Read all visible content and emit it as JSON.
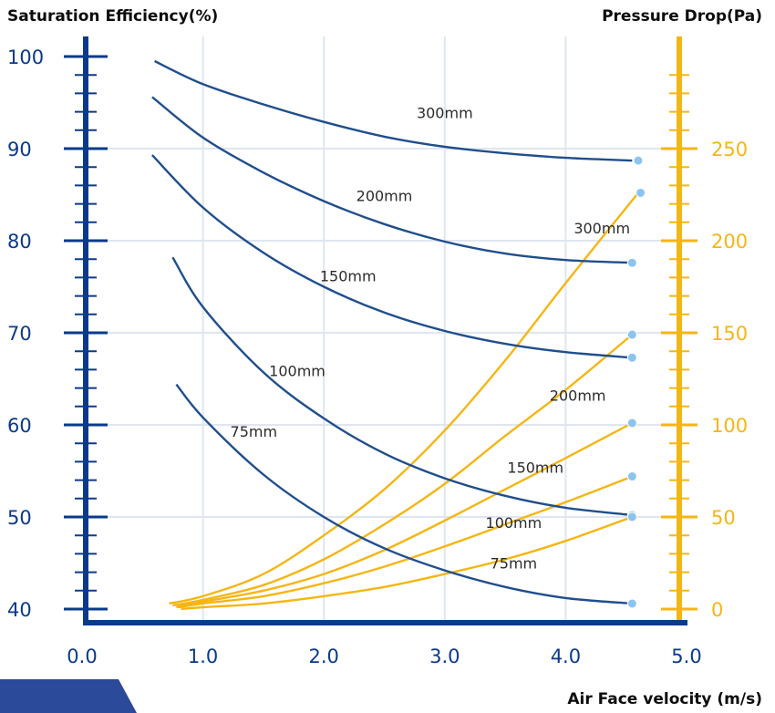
{
  "chart_data": {
    "type": "line",
    "left_axis_title": "Saturation Efficiency(%)",
    "right_axis_title": "Pressure Drop(Pa)",
    "xlabel": "Air Face velocity (m/s)",
    "xlim": [
      0,
      5
    ],
    "ylim_left": [
      40,
      100
    ],
    "ylim_right": [
      0,
      300
    ],
    "x_ticks": [
      "0.0",
      "1.0",
      "2.0",
      "3.0",
      "4.0",
      "5.0"
    ],
    "y_ticks_left": [
      "40",
      "50",
      "60",
      "70",
      "80",
      "90",
      "100"
    ],
    "y_ticks_right": [
      "0",
      "50",
      "100",
      "150",
      "200",
      "250"
    ],
    "grid": true,
    "colors": {
      "efficiency": "#1f4e8c",
      "pressure": "#f5b614",
      "left_axis": "#0a3a8a",
      "right_axis": "#f5b614",
      "marker": "#8cc4f0",
      "corner_band": "#2c4a9a"
    },
    "efficiency_series": [
      {
        "name": "300mm",
        "x": [
          0.6,
          1.0,
          1.5,
          2.0,
          2.5,
          3.0,
          3.5,
          4.0,
          4.55
        ],
        "values": [
          99.5,
          97.0,
          94.8,
          92.9,
          91.3,
          90.2,
          89.5,
          89.0,
          88.7
        ]
      },
      {
        "name": "200mm",
        "x": [
          0.58,
          1.0,
          1.5,
          2.0,
          2.5,
          3.0,
          3.5,
          4.0,
          4.55
        ],
        "values": [
          95.6,
          91.2,
          87.4,
          84.3,
          81.8,
          79.9,
          78.6,
          77.9,
          77.6
        ]
      },
      {
        "name": "150mm",
        "x": [
          0.58,
          1.0,
          1.5,
          2.0,
          2.5,
          3.0,
          3.5,
          4.0,
          4.55
        ],
        "values": [
          89.3,
          83.6,
          78.7,
          75.0,
          72.2,
          70.2,
          68.8,
          67.9,
          67.3
        ]
      },
      {
        "name": "100mm",
        "x": [
          0.75,
          1.0,
          1.5,
          2.0,
          2.5,
          3.0,
          3.5,
          4.0,
          4.55
        ],
        "values": [
          78.2,
          72.8,
          65.7,
          60.7,
          56.9,
          54.2,
          52.3,
          51.0,
          50.2
        ]
      },
      {
        "name": "75mm",
        "x": [
          0.78,
          1.0,
          1.5,
          2.0,
          2.5,
          3.0,
          3.5,
          4.0,
          4.55
        ],
        "values": [
          64.4,
          60.8,
          54.6,
          50.0,
          46.6,
          44.2,
          42.4,
          41.2,
          40.6
        ]
      }
    ],
    "pressure_series": [
      {
        "name": "300mm",
        "x": [
          0.72,
          1.0,
          1.5,
          2.0,
          2.5,
          3.0,
          3.5,
          4.0,
          4.6
        ],
        "values": [
          3,
          7,
          19,
          40,
          65,
          97,
          135,
          177,
          226
        ]
      },
      {
        "name": "200mm",
        "x": [
          0.75,
          1.0,
          1.5,
          2.0,
          2.5,
          3.0,
          3.5,
          4.0,
          4.55
        ],
        "values": [
          2,
          5,
          13,
          27,
          46,
          68,
          94,
          119,
          149
        ]
      },
      {
        "name": "150mm",
        "x": [
          0.78,
          1.0,
          1.5,
          2.0,
          2.5,
          3.0,
          3.5,
          4.0,
          4.55
        ],
        "values": [
          1,
          4,
          10,
          19,
          32,
          48,
          65,
          82,
          101
        ]
      },
      {
        "name": "100mm",
        "x": [
          0.8,
          1.0,
          1.5,
          2.0,
          2.5,
          3.0,
          3.5,
          4.0,
          4.55
        ],
        "values": [
          1,
          3,
          7,
          14,
          23,
          34,
          46,
          58,
          72
        ]
      },
      {
        "name": "75mm",
        "x": [
          0.82,
          1.0,
          1.5,
          2.0,
          2.5,
          3.0,
          3.5,
          4.0,
          4.55
        ],
        "values": [
          0,
          1,
          3,
          7,
          12,
          19,
          27,
          37,
          50
        ]
      }
    ],
    "efficiency_markers": [
      {
        "x": 4.6,
        "y": 88.7
      },
      {
        "x": 4.55,
        "y": 77.6
      },
      {
        "x": 4.55,
        "y": 67.3
      },
      {
        "x": 4.55,
        "y": 50.2
      },
      {
        "x": 4.55,
        "y": 40.6
      }
    ],
    "pressure_markers": [
      {
        "x": 4.62,
        "y": 226
      },
      {
        "x": 4.55,
        "y": 149
      },
      {
        "x": 4.55,
        "y": 101
      },
      {
        "x": 4.55,
        "y": 72
      },
      {
        "x": 4.55,
        "y": 50
      }
    ],
    "efficiency_labels": [
      {
        "text": "300mm",
        "x": 3.0,
        "y": 93.3
      },
      {
        "text": "200mm",
        "x": 2.5,
        "y": 84.3
      },
      {
        "text": "150mm",
        "x": 2.2,
        "y": 75.6
      },
      {
        "text": "100mm",
        "x": 1.78,
        "y": 65.3
      },
      {
        "text": "75mm",
        "x": 1.42,
        "y": 58.7
      }
    ],
    "pressure_labels": [
      {
        "text": "300mm",
        "x": 4.3,
        "y": 204
      },
      {
        "text": "200mm",
        "x": 4.1,
        "y": 113
      },
      {
        "text": "150mm",
        "x": 3.75,
        "y": 74
      },
      {
        "text": "100mm",
        "x": 3.57,
        "y": 44
      },
      {
        "text": "75mm",
        "x": 3.57,
        "y": 22
      }
    ]
  }
}
